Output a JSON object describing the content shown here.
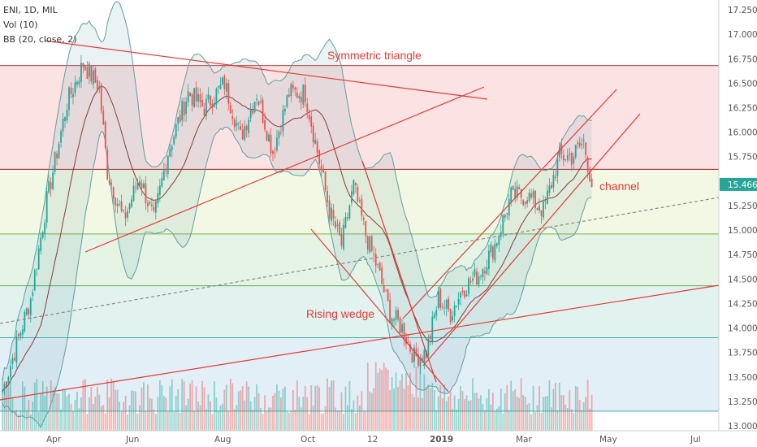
{
  "legend": {
    "symbol_line": "ENI, 1D, MIL",
    "vol_line": "Vol (10)",
    "bb_line": "BB (20, close, 2)"
  },
  "colors": {
    "up": "#26a69a",
    "down": "#ef5350",
    "trendline": "#e53935",
    "bb_band": "#5f9ea0",
    "bb_basis": "#8b3a3a",
    "price_badge": "#26a69a"
  },
  "chart_data": {
    "type": "candlestick",
    "symbol": "ENI",
    "timeframe": "1D",
    "exchange": "MIL",
    "x_labels": [
      "Apr",
      "Jun",
      "Aug",
      "Oct",
      "12",
      "2019",
      "Mar",
      "May",
      "Jul"
    ],
    "y_ticks": [
      "13.000",
      "13.250",
      "13.500",
      "13.750",
      "14.000",
      "14.250",
      "14.500",
      "14.750",
      "15.000",
      "15.250",
      "15.500",
      "15.750",
      "16.000",
      "16.250",
      "16.500",
      "16.750",
      "17.000",
      "17.250"
    ],
    "ylim": [
      12.95,
      17.35
    ],
    "last_price": "15.466",
    "horizontal_levels": [
      16.68,
      15.62,
      14.96,
      14.43,
      13.9,
      13.15
    ],
    "annotations": [
      "Symmetric triangle",
      "Rising wedge",
      "channel"
    ],
    "price_anchors": [
      [
        0,
        13.35
      ],
      [
        8,
        13.9
      ],
      [
        14,
        14.3
      ],
      [
        22,
        15.3
      ],
      [
        32,
        16.3
      ],
      [
        40,
        16.7
      ],
      [
        48,
        16.45
      ],
      [
        52,
        15.6
      ],
      [
        60,
        15.1
      ],
      [
        68,
        15.55
      ],
      [
        75,
        15.1
      ],
      [
        82,
        15.8
      ],
      [
        92,
        16.4
      ],
      [
        100,
        16.25
      ],
      [
        110,
        16.5
      ],
      [
        118,
        15.95
      ],
      [
        126,
        16.4
      ],
      [
        134,
        15.8
      ],
      [
        142,
        16.4
      ],
      [
        150,
        16.4
      ],
      [
        156,
        15.8
      ],
      [
        162,
        15.2
      ],
      [
        168,
        14.85
      ],
      [
        174,
        15.45
      ],
      [
        180,
        14.95
      ],
      [
        186,
        14.6
      ],
      [
        192,
        14.15
      ],
      [
        198,
        14.0
      ],
      [
        204,
        13.7
      ],
      [
        210,
        13.75
      ],
      [
        216,
        14.3
      ],
      [
        222,
        14.15
      ],
      [
        228,
        14.4
      ],
      [
        236,
        14.55
      ],
      [
        244,
        14.85
      ],
      [
        252,
        15.35
      ],
      [
        260,
        15.35
      ],
      [
        268,
        15.2
      ],
      [
        276,
        15.75
      ],
      [
        282,
        15.75
      ],
      [
        288,
        15.9
      ],
      [
        292,
        15.466
      ]
    ],
    "volume_scale": "relative"
  }
}
